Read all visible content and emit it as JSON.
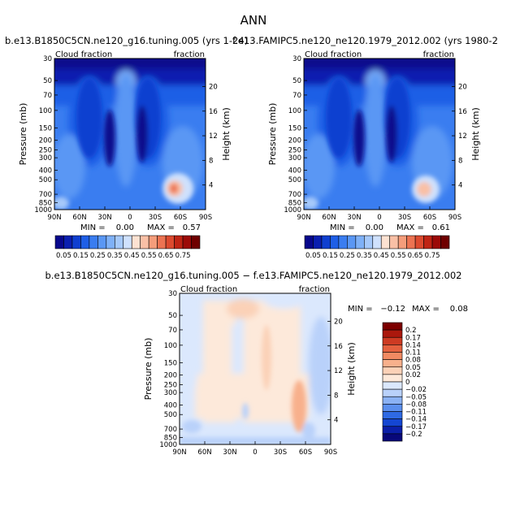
{
  "figure": {
    "title": "ANN"
  },
  "colors": {
    "seq": [
      "#08088c",
      "#0a1fb0",
      "#0f3fd0",
      "#1f5fe6",
      "#3a7df0",
      "#5a97f4",
      "#7fb1f7",
      "#a6c9fa",
      "#cfe1fd",
      "#fde2d2",
      "#f9c0a6",
      "#f59d7b",
      "#ec7352",
      "#dc4a2f",
      "#bf2414",
      "#9c0a08",
      "#6f0000"
    ],
    "diff": [
      "#08087a",
      "#0b1fa8",
      "#1446d2",
      "#2f6ae4",
      "#5b8fee",
      "#8bb2f4",
      "#b9d1fa",
      "#dbe8fd",
      "#fde9da",
      "#fbd1b7",
      "#f8b08c",
      "#f18a62",
      "#e4613f",
      "#cd3b23",
      "#ab180d",
      "#7d0000"
    ]
  },
  "chart_data": [
    {
      "type": "heatmap",
      "title": "b.e13.B1850C5CN.ne120_g16.tuning.005 (yrs 1-24)",
      "left_label": "Cloud fraction",
      "right_label": "fraction",
      "ylabel": "Pressure (mb)",
      "y2label": "Height (km)",
      "xticks": [
        "90N",
        "60N",
        "30N",
        "0",
        "30S",
        "60S",
        "90S"
      ],
      "yticks": [
        1000,
        850,
        700,
        500,
        400,
        300,
        250,
        200,
        150,
        100,
        70,
        50,
        30
      ],
      "y2ticks": [
        4,
        8,
        12,
        16,
        20
      ],
      "ylim": [
        1000,
        30
      ],
      "stats": {
        "min_label": "MIN =",
        "min": "0.00",
        "max_label": "MAX =",
        "max": "0.57"
      }
    },
    {
      "type": "heatmap",
      "title": "f.e13.FAMIPC5.ne120_ne120.1979_2012.002 (yrs 1980-2",
      "left_label": "Cloud fraction",
      "right_label": "fraction",
      "ylabel": "Pressure (mb)",
      "y2label": "Height (km)",
      "xticks": [
        "90N",
        "60N",
        "30N",
        "0",
        "30S",
        "60S",
        "90S"
      ],
      "yticks": [
        1000,
        850,
        700,
        500,
        400,
        300,
        250,
        200,
        150,
        100,
        70,
        50,
        30
      ],
      "y2ticks": [
        4,
        8,
        12,
        16,
        20
      ],
      "ylim": [
        1000,
        30
      ],
      "stats": {
        "min_label": "MIN =",
        "min": "0.00",
        "max_label": "MAX =",
        "max": "0.61"
      }
    },
    {
      "type": "heatmap",
      "title": "b.e13.B1850C5CN.ne120_g16.tuning.005 − f.e13.FAMIPC5.ne120_ne120.1979_2012.002",
      "left_label": "Cloud fraction",
      "right_label": "fraction",
      "ylabel": "Pressure (mb)",
      "y2label": "Height (km)",
      "xticks": [
        "90N",
        "60N",
        "30N",
        "0",
        "30S",
        "60S",
        "90S"
      ],
      "yticks": [
        1000,
        850,
        700,
        500,
        400,
        300,
        250,
        200,
        150,
        100,
        70,
        50,
        30
      ],
      "y2ticks": [
        4,
        8,
        12,
        16,
        20
      ],
      "ylim": [
        1000,
        30
      ],
      "stats": {
        "min_label": "MIN =",
        "min": "−0.12",
        "max_label": "MAX =",
        "max": "0.08"
      }
    }
  ],
  "colorbar_seq": {
    "labels": [
      "0.05",
      "0.15",
      "0.25",
      "0.35",
      "0.45",
      "0.55",
      "0.65",
      "0.75"
    ]
  },
  "colorbar_diff": {
    "labels": [
      "0.2",
      "0.17",
      "0.14",
      "0.11",
      "0.08",
      "0.05",
      "0.02",
      "0",
      "−0.02",
      "−0.05",
      "−0.08",
      "−0.11",
      "−0.14",
      "−0.17",
      "−0.2"
    ]
  }
}
